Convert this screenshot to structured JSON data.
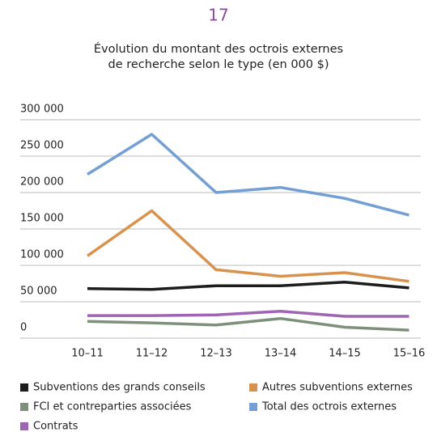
{
  "chart_data": {
    "type": "line",
    "figure_number": "17",
    "title": [
      "Évolution du montant des octrois externes",
      "de recherche selon le type (en 000 $)"
    ],
    "categories": [
      "10–11",
      "11–12",
      "12–13",
      "13–14",
      "14–15",
      "15–16"
    ],
    "series": [
      {
        "name": "Subventions des grands conseils",
        "color": "#1c1c1c",
        "values": [
          68000,
          67000,
          72000,
          72000,
          77000,
          69000
        ]
      },
      {
        "name": "Autres subventions externes",
        "color": "#d9924e",
        "values": [
          113000,
          175000,
          94000,
          85000,
          90000,
          78000
        ]
      },
      {
        "name": "FCI et contreparties associées",
        "color": "#7d9079",
        "values": [
          23000,
          21000,
          18000,
          27000,
          15000,
          11000
        ]
      },
      {
        "name": "Total des octrois externes",
        "color": "#739fd3",
        "values": [
          225000,
          280000,
          200000,
          207000,
          192000,
          169000
        ]
      },
      {
        "name": "Contrats",
        "color": "#a064b4",
        "values": [
          31000,
          31000,
          32000,
          37000,
          30000,
          30000
        ]
      }
    ],
    "ylim": [
      0,
      300000
    ],
    "yticks": [
      0,
      {
        "value": 50000,
        "label": "50 000"
      },
      {
        "value": 100000,
        "label": "100 000"
      },
      {
        "value": 150000,
        "label": "150 000"
      },
      {
        "value": 200000,
        "label": "200 000"
      },
      {
        "value": 250000,
        "label": "250 000"
      },
      {
        "value": 300000,
        "label": "300 000"
      }
    ],
    "grid": true
  }
}
